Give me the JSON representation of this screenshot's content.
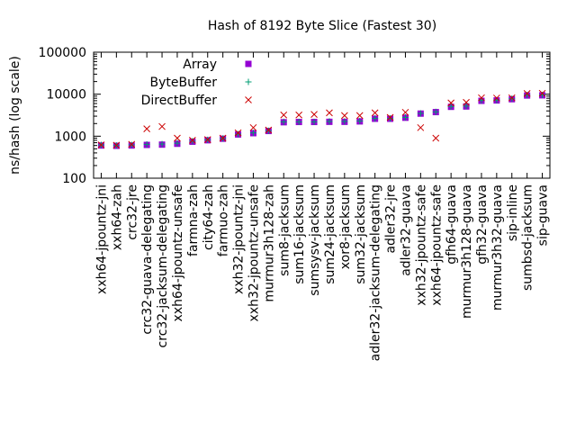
{
  "chart_data": {
    "type": "scatter",
    "title": "Hash of 8192 Byte Slice (Fastest 30)",
    "xlabel": "",
    "ylabel": "ns/hash (log scale)",
    "yscale": "log",
    "ylim": [
      100,
      100000
    ],
    "yticks": [
      100,
      1000,
      10000,
      100000
    ],
    "ytick_labels": [
      "100",
      "1000",
      "10000",
      "100000"
    ],
    "legend_position": "top-left inside",
    "categories": [
      "xxh64-jpountz-jni",
      "xxh64-zah",
      "crc32-jre",
      "crc32-guava-delegating",
      "crc32-jacksum-delegating",
      "xxh64-jpountz-unsafe",
      "farmna-zah",
      "city64-zah",
      "farmuo-zah",
      "xxh32-jpountz-jni",
      "xxh32-jpountz-unsafe",
      "murmur3h128-zah",
      "sum8-jacksum",
      "sum16-jacksum",
      "sumsysv-jacksum",
      "sum24-jacksum",
      "xor8-jacksum",
      "sum32-jacksum",
      "adler32-jacksum-delegating",
      "adler32-jre",
      "adler32-guava",
      "xxh32-jpountz-safe",
      "xxh64-jpountz-safe",
      "gfh64-guava",
      "murmur3h128-guava",
      "gfh32-guava",
      "murmur3h32-guava",
      "sip-inline",
      "sumbsd-jacksum",
      "sip-guava"
    ],
    "series": [
      {
        "name": "Array",
        "marker": "square",
        "color": "#9400D3",
        "values": [
          600,
          590,
          600,
          620,
          630,
          660,
          740,
          800,
          870,
          1100,
          1180,
          1330,
          2150,
          2180,
          2180,
          2200,
          2200,
          2250,
          2600,
          2600,
          2750,
          3450,
          3750,
          5000,
          5100,
          6950,
          7100,
          7600,
          9300,
          9400
        ]
      },
      {
        "name": "ByteBuffer",
        "marker": "plus",
        "color": "#009E73",
        "values": [
          620,
          600,
          620,
          640,
          650,
          680,
          760,
          820,
          880,
          1120,
          1200,
          1350,
          2200,
          2200,
          2200,
          2250,
          2250,
          2300,
          2650,
          2650,
          2800,
          3500,
          3800,
          5100,
          5200,
          7100,
          7200,
          7800,
          9500,
          9600
        ]
      },
      {
        "name": "DirectBuffer",
        "marker": "x",
        "color": "#CC0000",
        "values": [
          620,
          610,
          640,
          1500,
          1700,
          900,
          800,
          830,
          900,
          1200,
          1600,
          1400,
          3200,
          3200,
          3300,
          3600,
          3100,
          3100,
          3600,
          2800,
          3700,
          1600,
          900,
          6200,
          6400,
          8200,
          8100,
          8200,
          10400,
          10500
        ]
      }
    ]
  }
}
